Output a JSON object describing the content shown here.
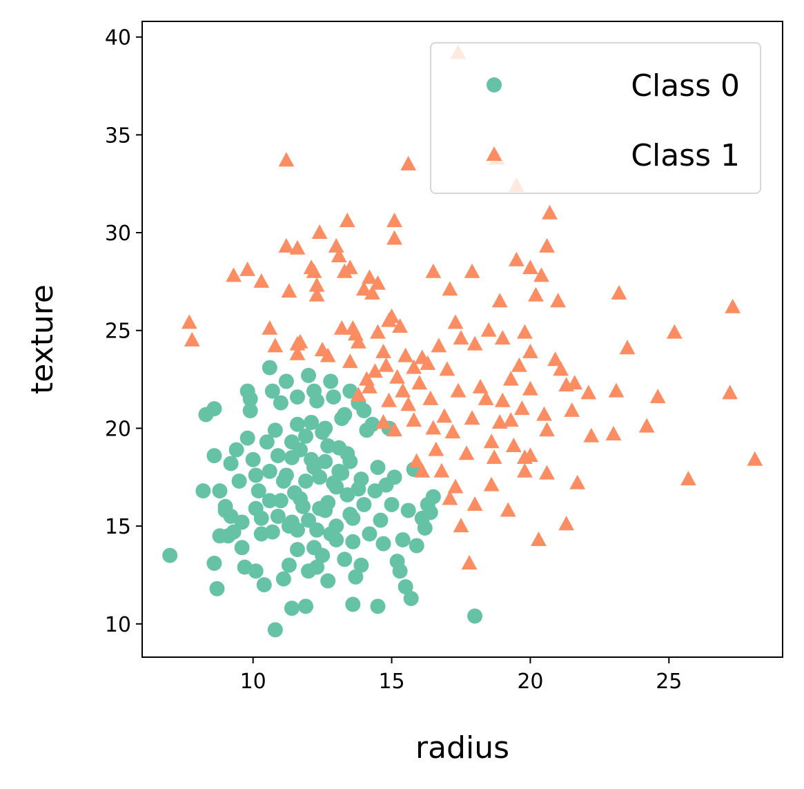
{
  "chart_data": {
    "type": "scatter",
    "title": "",
    "xlabel": "radius",
    "ylabel": "texture",
    "xlim": [
      6,
      29.1
    ],
    "ylim": [
      8.3,
      40.8
    ],
    "xticks": [
      10,
      15,
      20,
      25
    ],
    "yticks": [
      10,
      15,
      20,
      25,
      30,
      35,
      40
    ],
    "xtick_labels": [
      "10",
      "15",
      "20",
      "25"
    ],
    "ytick_labels": [
      "10",
      "15",
      "20",
      "25",
      "30",
      "35",
      "40"
    ],
    "grid": false,
    "legend": {
      "position": "top-right"
    },
    "series": [
      {
        "name": "Class 0",
        "marker": "circle",
        "color": "#66c2a5",
        "points": [
          [
            7.0,
            13.5
          ],
          [
            8.2,
            16.8
          ],
          [
            8.3,
            20.7
          ],
          [
            8.6,
            21.0
          ],
          [
            8.6,
            18.6
          ],
          [
            8.6,
            13.1
          ],
          [
            8.7,
            11.8
          ],
          [
            8.8,
            14.5
          ],
          [
            8.8,
            16.8
          ],
          [
            9.0,
            15.8
          ],
          [
            9.1,
            14.5
          ],
          [
            9.2,
            15.5
          ],
          [
            9.3,
            14.7
          ],
          [
            9.4,
            18.9
          ],
          [
            9.5,
            17.3
          ],
          [
            9.6,
            13.9
          ],
          [
            9.7,
            12.9
          ],
          [
            9.8,
            21.9
          ],
          [
            9.9,
            21.5
          ],
          [
            9.9,
            20.9
          ],
          [
            10.0,
            18.4
          ],
          [
            10.1,
            15.9
          ],
          [
            10.1,
            12.7
          ],
          [
            10.2,
            16.8
          ],
          [
            10.3,
            15.4
          ],
          [
            10.4,
            12.0
          ],
          [
            10.5,
            19.3
          ],
          [
            10.6,
            17.8
          ],
          [
            10.7,
            14.7
          ],
          [
            10.8,
            19.9
          ],
          [
            10.9,
            18.6
          ],
          [
            11.0,
            16.3
          ],
          [
            11.0,
            21.3
          ],
          [
            11.1,
            12.3
          ],
          [
            11.2,
            17.6
          ],
          [
            11.3,
            15.0
          ],
          [
            11.4,
            19.3
          ],
          [
            11.5,
            16.7
          ],
          [
            11.6,
            20.2
          ],
          [
            11.6,
            14.8
          ],
          [
            11.7,
            18.9
          ],
          [
            11.8,
            16.0
          ],
          [
            11.9,
            17.3
          ],
          [
            12.0,
            15.3
          ],
          [
            12.1,
            20.3
          ],
          [
            12.1,
            18.4
          ],
          [
            12.2,
            13.9
          ],
          [
            12.2,
            21.9
          ],
          [
            12.3,
            12.9
          ],
          [
            12.4,
            15.9
          ],
          [
            12.4,
            17.5
          ],
          [
            12.5,
            19.8
          ],
          [
            12.6,
            18.3
          ],
          [
            12.7,
            16.2
          ],
          [
            12.8,
            14.6
          ],
          [
            12.9,
            21.6
          ],
          [
            13.0,
            17.0
          ],
          [
            13.0,
            15.0
          ],
          [
            13.1,
            19.0
          ],
          [
            13.2,
            17.7
          ],
          [
            13.3,
            13.3
          ],
          [
            13.3,
            20.7
          ],
          [
            13.4,
            16.6
          ],
          [
            13.5,
            15.6
          ],
          [
            13.5,
            18.3
          ],
          [
            13.6,
            14.2
          ],
          [
            13.7,
            12.4
          ],
          [
            13.8,
            21.3
          ],
          [
            13.9,
            17.4
          ],
          [
            14.0,
            16.1
          ],
          [
            14.1,
            19.9
          ],
          [
            14.2,
            14.6
          ],
          [
            14.3,
            20.2
          ],
          [
            14.4,
            16.8
          ],
          [
            14.5,
            18.0
          ],
          [
            14.6,
            15.3
          ],
          [
            14.7,
            14.1
          ],
          [
            14.8,
            17.1
          ],
          [
            14.9,
            20.0
          ],
          [
            15.0,
            16.1
          ],
          [
            15.1,
            17.5
          ],
          [
            15.2,
            13.2
          ],
          [
            15.3,
            12.7
          ],
          [
            15.4,
            14.3
          ],
          [
            15.5,
            11.9
          ],
          [
            15.6,
            15.8
          ],
          [
            15.7,
            11.3
          ],
          [
            15.8,
            17.9
          ],
          [
            15.9,
            14.0
          ],
          [
            16.1,
            15.4
          ],
          [
            16.2,
            14.9
          ],
          [
            16.3,
            16.1
          ],
          [
            16.4,
            15.7
          ],
          [
            16.5,
            16.5
          ],
          [
            11.4,
            10.8
          ],
          [
            11.9,
            10.9
          ],
          [
            10.8,
            9.7
          ],
          [
            13.6,
            11.0
          ],
          [
            14.5,
            10.9
          ],
          [
            18.0,
            10.4
          ],
          [
            10.6,
            23.1
          ],
          [
            12.0,
            22.7
          ],
          [
            12.8,
            22.4
          ],
          [
            11.2,
            22.4
          ],
          [
            13.5,
            21.9
          ],
          [
            10.7,
            21.9
          ],
          [
            11.6,
            21.6
          ],
          [
            12.3,
            21.4
          ],
          [
            14.0,
            20.9
          ],
          [
            13.2,
            20.5
          ],
          [
            12.6,
            20.0
          ],
          [
            11.9,
            19.6
          ],
          [
            12.7,
            19.1
          ],
          [
            13.4,
            18.7
          ],
          [
            11.4,
            18.5
          ],
          [
            12.2,
            18.0
          ],
          [
            13.1,
            17.8
          ],
          [
            11.1,
            17.3
          ],
          [
            12.9,
            17.2
          ],
          [
            13.8,
            16.9
          ],
          [
            11.7,
            16.4
          ],
          [
            12.6,
            15.8
          ],
          [
            13.6,
            15.4
          ],
          [
            11.4,
            15.2
          ],
          [
            12.3,
            14.8
          ],
          [
            13.0,
            14.3
          ],
          [
            11.6,
            13.8
          ],
          [
            12.5,
            13.5
          ],
          [
            13.9,
            13.0
          ],
          [
            12.0,
            12.7
          ],
          [
            11.3,
            13.0
          ],
          [
            12.7,
            12.2
          ],
          [
            9.2,
            18.2
          ],
          [
            9.8,
            19.5
          ],
          [
            10.1,
            17.6
          ],
          [
            10.6,
            16.3
          ],
          [
            10.9,
            15.5
          ],
          [
            9.6,
            15.2
          ],
          [
            9.0,
            16.0
          ],
          [
            10.3,
            14.6
          ]
        ]
      },
      {
        "name": "Class 1",
        "marker": "triangle",
        "color": "#fc8d62",
        "points": [
          [
            7.7,
            25.4
          ],
          [
            7.8,
            24.5
          ],
          [
            9.3,
            27.8
          ],
          [
            9.8,
            28.1
          ],
          [
            10.3,
            27.5
          ],
          [
            10.6,
            25.1
          ],
          [
            10.8,
            24.2
          ],
          [
            11.2,
            33.7
          ],
          [
            11.2,
            29.3
          ],
          [
            11.3,
            27.0
          ],
          [
            11.6,
            29.2
          ],
          [
            11.6,
            24.3
          ],
          [
            11.6,
            23.8
          ],
          [
            11.7,
            24.4
          ],
          [
            12.1,
            28.2
          ],
          [
            12.2,
            28.0
          ],
          [
            12.3,
            27.3
          ],
          [
            12.3,
            26.8
          ],
          [
            12.4,
            30.0
          ],
          [
            12.5,
            24.0
          ],
          [
            12.7,
            23.7
          ],
          [
            13.0,
            29.3
          ],
          [
            13.1,
            28.8
          ],
          [
            13.2,
            25.1
          ],
          [
            13.3,
            28.0
          ],
          [
            13.4,
            30.6
          ],
          [
            13.5,
            28.2
          ],
          [
            13.6,
            25.1
          ],
          [
            13.7,
            24.8
          ],
          [
            13.8,
            24.4
          ],
          [
            14.0,
            27.1
          ],
          [
            14.1,
            22.5
          ],
          [
            14.2,
            27.7
          ],
          [
            14.3,
            26.9
          ],
          [
            14.5,
            27.4
          ],
          [
            14.5,
            24.9
          ],
          [
            14.7,
            23.9
          ],
          [
            14.9,
            25.5
          ],
          [
            15.0,
            25.7
          ],
          [
            15.1,
            30.6
          ],
          [
            15.1,
            29.7
          ],
          [
            15.3,
            25.2
          ],
          [
            15.5,
            23.7
          ],
          [
            15.6,
            33.5
          ],
          [
            15.8,
            23.1
          ],
          [
            16.1,
            23.6
          ],
          [
            16.3,
            23.3
          ],
          [
            16.5,
            28.0
          ],
          [
            16.7,
            24.2
          ],
          [
            17.0,
            23.0
          ],
          [
            17.1,
            27.1
          ],
          [
            17.3,
            25.4
          ],
          [
            17.5,
            24.6
          ],
          [
            17.4,
            39.2
          ],
          [
            17.9,
            28.0
          ],
          [
            18.0,
            24.3
          ],
          [
            18.5,
            25.0
          ],
          [
            18.9,
            26.5
          ],
          [
            19.0,
            24.6
          ],
          [
            19.3,
            22.5
          ],
          [
            19.5,
            28.6
          ],
          [
            19.6,
            23.2
          ],
          [
            19.8,
            24.9
          ],
          [
            20.0,
            28.2
          ],
          [
            20.0,
            23.9
          ],
          [
            20.2,
            26.8
          ],
          [
            20.4,
            27.8
          ],
          [
            20.6,
            29.3
          ],
          [
            20.7,
            31.0
          ],
          [
            20.9,
            23.5
          ],
          [
            21.0,
            26.5
          ],
          [
            21.1,
            23.0
          ],
          [
            19.5,
            32.4
          ],
          [
            18.8,
            33.8
          ],
          [
            21.3,
            22.2
          ],
          [
            21.6,
            22.3
          ],
          [
            22.1,
            21.8
          ],
          [
            23.2,
            26.9
          ],
          [
            23.5,
            24.1
          ],
          [
            23.1,
            21.9
          ],
          [
            24.6,
            21.6
          ],
          [
            25.2,
            24.9
          ],
          [
            27.3,
            26.2
          ],
          [
            27.2,
            21.8
          ],
          [
            28.1,
            18.4
          ],
          [
            25.7,
            17.4
          ],
          [
            24.2,
            20.1
          ],
          [
            23.0,
            19.7
          ],
          [
            22.2,
            19.6
          ],
          [
            21.7,
            17.2
          ],
          [
            21.3,
            15.1
          ],
          [
            20.3,
            14.3
          ],
          [
            20.6,
            17.7
          ],
          [
            19.8,
            18.5
          ],
          [
            19.2,
            15.8
          ],
          [
            18.6,
            17.1
          ],
          [
            18.0,
            16.1
          ],
          [
            17.8,
            13.1
          ],
          [
            17.5,
            15.0
          ],
          [
            17.1,
            16.4
          ],
          [
            16.1,
            17.8
          ],
          [
            15.9,
            18.3
          ],
          [
            16.6,
            18.9
          ],
          [
            17.2,
            19.8
          ],
          [
            17.9,
            20.5
          ],
          [
            18.4,
            21.5
          ],
          [
            18.9,
            20.3
          ],
          [
            19.4,
            19.1
          ],
          [
            20.0,
            18.6
          ],
          [
            16.4,
            21.5
          ],
          [
            16.9,
            20.6
          ],
          [
            15.8,
            20.4
          ],
          [
            15.1,
            19.9
          ],
          [
            14.7,
            20.3
          ],
          [
            15.6,
            21.2
          ],
          [
            16.0,
            22.3
          ],
          [
            17.4,
            21.9
          ],
          [
            18.2,
            22.1
          ],
          [
            19.0,
            21.4
          ],
          [
            19.7,
            21.0
          ],
          [
            20.5,
            20.7
          ],
          [
            20.0,
            22.0
          ],
          [
            19.3,
            20.4
          ],
          [
            18.6,
            19.3
          ],
          [
            17.7,
            18.7
          ],
          [
            16.8,
            17.8
          ],
          [
            14.4,
            22.9
          ],
          [
            14.8,
            23.2
          ],
          [
            15.2,
            22.6
          ],
          [
            13.8,
            21.7
          ],
          [
            14.2,
            22.1
          ],
          [
            13.5,
            23.4
          ],
          [
            14.9,
            21.4
          ],
          [
            15.4,
            21.9
          ],
          [
            16.5,
            20.0
          ],
          [
            17.3,
            17.0
          ],
          [
            18.7,
            18.5
          ],
          [
            19.8,
            17.8
          ],
          [
            20.6,
            19.9
          ],
          [
            21.5,
            20.9
          ]
        ]
      }
    ]
  }
}
